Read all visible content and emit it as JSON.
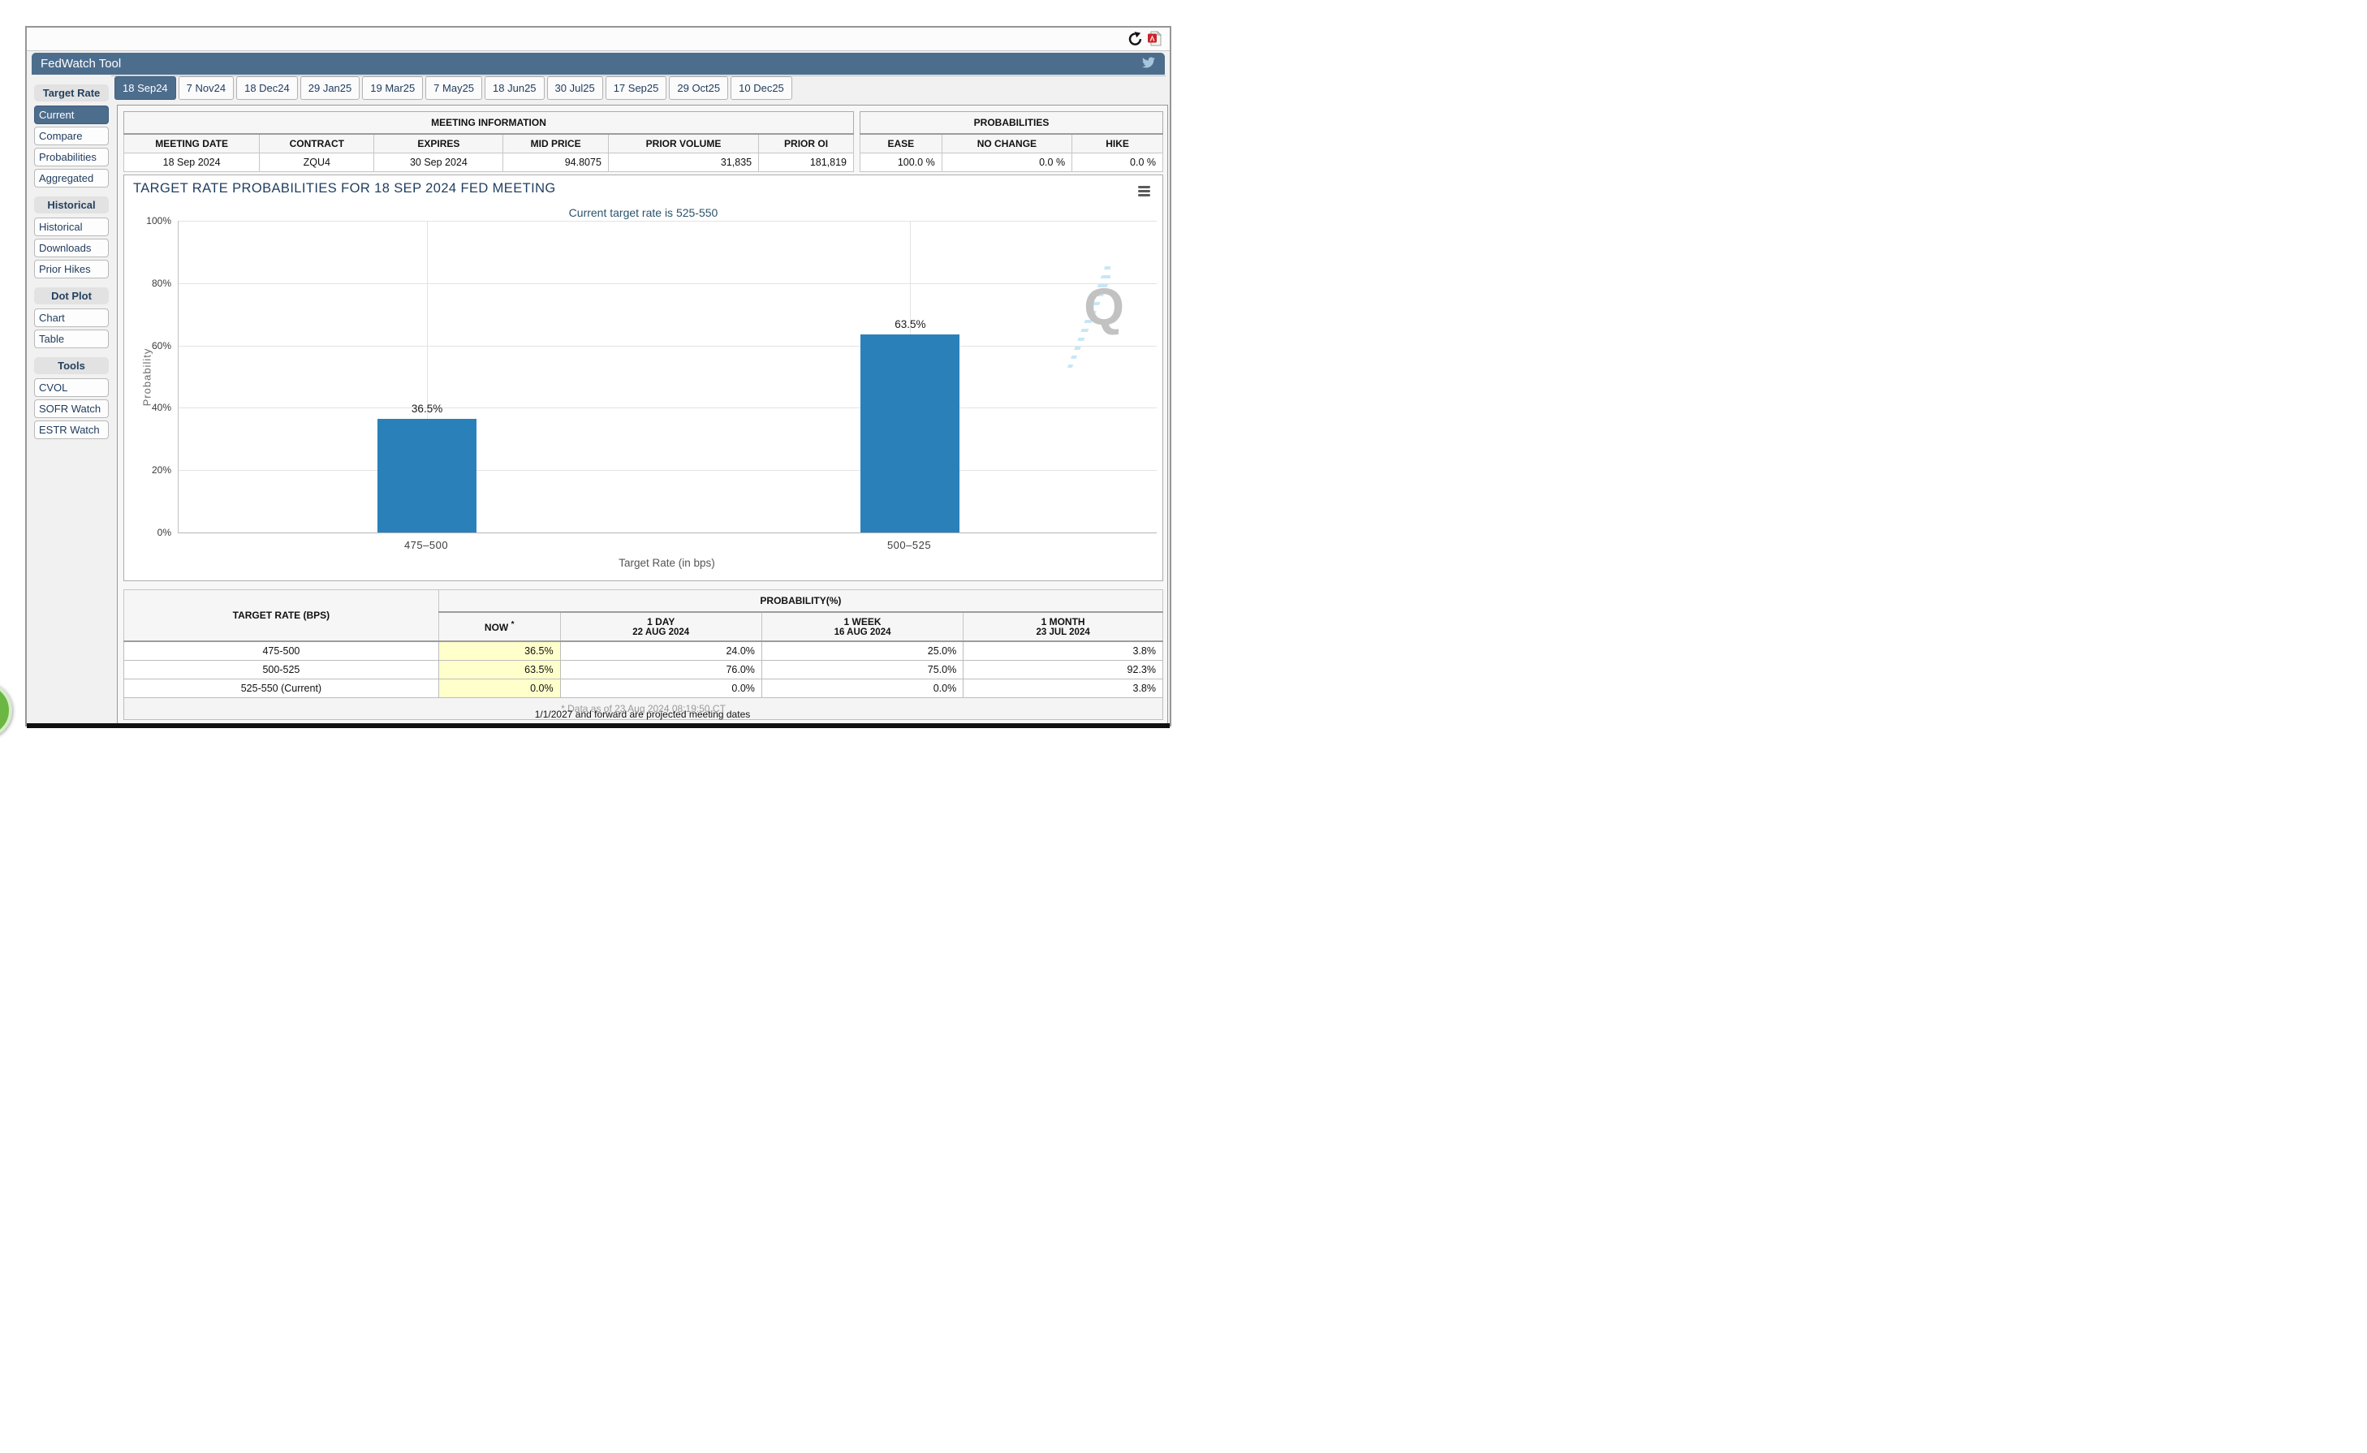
{
  "header": {
    "title": "FedWatch Tool"
  },
  "tabs": [
    {
      "label": "18 Sep24",
      "selected": true
    },
    {
      "label": "7 Nov24"
    },
    {
      "label": "18 Dec24"
    },
    {
      "label": "29 Jan25"
    },
    {
      "label": "19 Mar25"
    },
    {
      "label": "7 May25"
    },
    {
      "label": "18 Jun25"
    },
    {
      "label": "30 Jul25"
    },
    {
      "label": "17 Sep25"
    },
    {
      "label": "29 Oct25"
    },
    {
      "label": "10 Dec25"
    }
  ],
  "sidebar": {
    "sections": [
      {
        "title": "Target Rate",
        "items": [
          {
            "label": "Current",
            "selected": true
          },
          {
            "label": "Compare"
          },
          {
            "label": "Probabilities"
          },
          {
            "label": "Aggregated"
          }
        ]
      },
      {
        "title": "Historical",
        "items": [
          {
            "label": "Historical"
          },
          {
            "label": "Downloads"
          },
          {
            "label": "Prior Hikes"
          }
        ]
      },
      {
        "title": "Dot Plot",
        "items": [
          {
            "label": "Chart"
          },
          {
            "label": "Table"
          }
        ]
      },
      {
        "title": "Tools",
        "items": [
          {
            "label": "CVOL"
          },
          {
            "label": "SOFR Watch"
          },
          {
            "label": "ESTR Watch"
          }
        ]
      }
    ]
  },
  "meeting_info": {
    "caption": "MEETING INFORMATION",
    "headers": [
      "MEETING DATE",
      "CONTRACT",
      "EXPIRES",
      "MID PRICE",
      "PRIOR VOLUME",
      "PRIOR OI"
    ],
    "row": {
      "meeting_date": "18 Sep 2024",
      "contract": "ZQU4",
      "expires": "30 Sep 2024",
      "mid_price": "94.8075",
      "prior_volume": "31,835",
      "prior_oi": "181,819"
    }
  },
  "probabilities_summary": {
    "caption": "PROBABILITIES",
    "headers": [
      "EASE",
      "NO CHANGE",
      "HIKE"
    ],
    "row": {
      "ease": "100.0 %",
      "no_change": "0.0 %",
      "hike": "0.0 %"
    }
  },
  "chart_data": {
    "type": "bar",
    "title": "TARGET RATE PROBABILITIES FOR 18 SEP 2024 FED MEETING",
    "subtitle": "Current target rate is 525-550",
    "categories": [
      "475–500",
      "500–525"
    ],
    "values": [
      36.5,
      63.5
    ],
    "value_labels": [
      "36.5%",
      "63.5%"
    ],
    "xlabel": "Target Rate (in bps)",
    "ylabel": "Probability",
    "ylim": [
      0,
      100
    ],
    "yticks": [
      "0%",
      "20%",
      "40%",
      "60%",
      "80%",
      "100%"
    ],
    "grid": true,
    "legend": false,
    "bar_color": "#2a81ba"
  },
  "probability_table": {
    "col_group_left": "TARGET RATE (BPS)",
    "col_group_right": "PROBABILITY(%)",
    "sub_headers": [
      {
        "line1": "NOW",
        "asterisk": "*"
      },
      {
        "line1": "1 DAY",
        "line2": "22 AUG 2024"
      },
      {
        "line1": "1 WEEK",
        "line2": "16 AUG 2024"
      },
      {
        "line1": "1 MONTH",
        "line2": "23 JUL 2024"
      }
    ],
    "rows": [
      {
        "rate": "475-500",
        "now": "36.5%",
        "one_day": "24.0%",
        "one_week": "25.0%",
        "one_month": "3.8%"
      },
      {
        "rate": "500-525",
        "now": "63.5%",
        "one_day": "76.0%",
        "one_week": "75.0%",
        "one_month": "92.3%"
      },
      {
        "rate": "525-550 (Current)",
        "now": "0.0%",
        "one_day": "0.0%",
        "one_week": "0.0%",
        "one_month": "3.8%"
      }
    ],
    "footnote": "* Data as of 23 Aug 2024 08:19:50 CT"
  },
  "notes": {
    "projected": "1/1/2027 and forward are projected meeting dates"
  },
  "colors": {
    "accent_blue": "#4d6d8d",
    "bar_blue": "#2a81ba",
    "highlight_yellow": "#ffffcc",
    "fab_green": "#6cb644",
    "pdf_red": "#cc2229",
    "twitter_blue": "#a7c4dd"
  }
}
